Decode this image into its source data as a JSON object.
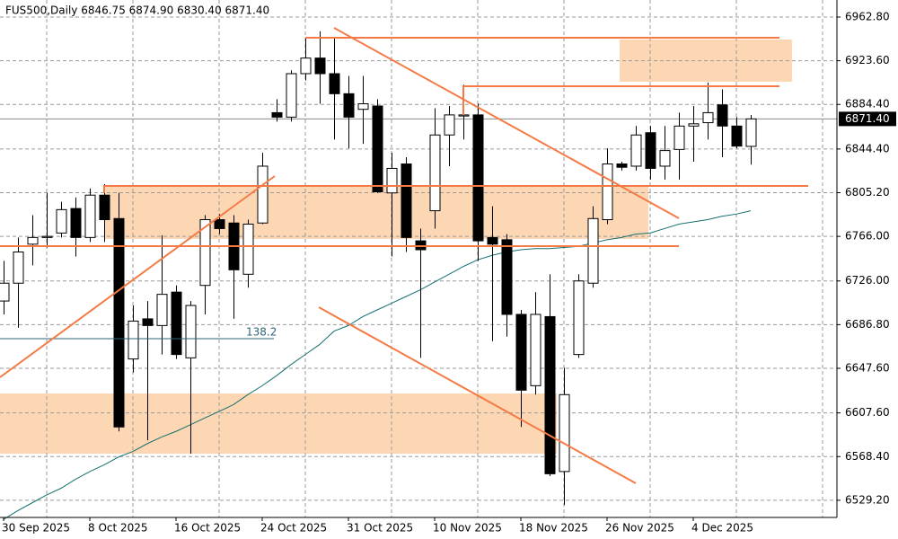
{
  "chart_data": {
    "type": "candlestick",
    "title": "FUS500,Daily  6846.75 6874.90 6830.40 6871.40",
    "categories": [
      "30 Sep 2025",
      null,
      null,
      null,
      null,
      null,
      "8 Oct 2025",
      null,
      null,
      null,
      null,
      null,
      "16 Oct 2025",
      null,
      null,
      null,
      null,
      null,
      "24 Oct 2025",
      null,
      null,
      null,
      null,
      null,
      "31 Oct 2025",
      null,
      null,
      null,
      null,
      null,
      "10 Nov 2025",
      null,
      null,
      null,
      null,
      null,
      "18 Nov 2025",
      null,
      null,
      null,
      null,
      null,
      "26 Nov 2025",
      null,
      null,
      null,
      null,
      null,
      "4 Dec 2025",
      null,
      null,
      null,
      null
    ],
    "open": [
      6708,
      6724,
      6759,
      6765,
      6769,
      6791,
      6765,
      6803,
      6782,
      6656,
      6692,
      6686,
      6716,
      6657,
      6722,
      6781,
      6778,
      6732,
      6778,
      6877,
      6873,
      6912,
      6926,
      6912,
      6894,
      6880,
      6883,
      6805,
      6831,
      6762,
      6789,
      6857,
      6874,
      6875,
      6765,
      6763,
      6696,
      6632,
      6694,
      6555,
      6660,
      6724,
      6781,
      6831,
      6829,
      6859,
      6829,
      6844,
      6865,
      6868,
      6884,
      6865,
      6846.75
    ],
    "high": [
      6744,
      6765,
      6785,
      6805,
      6797,
      6801,
      6809,
      6813,
      6805,
      6704,
      6708,
      6767,
      6722,
      6708,
      6785,
      6786,
      6785,
      6781,
      6841,
      6889,
      6915,
      6944,
      6950,
      6944,
      6910,
      6910,
      6889,
      6841,
      6837,
      6773,
      6881,
      6883,
      6902,
      6885,
      6793,
      6768,
      6700,
      6716,
      6732,
      6648,
      6732,
      6793,
      6845,
      6833,
      6865,
      6865,
      6865,
      6877,
      6883,
      6904,
      6898,
      6873,
      6874.9
    ],
    "low": [
      6696,
      6684,
      6740,
      6756,
      6765,
      6748,
      6761,
      6761,
      6591,
      6644,
      6583,
      6660,
      6656,
      6571,
      6696,
      6768,
      6692,
      6720,
      6777,
      6869,
      6869,
      6906,
      6885,
      6853,
      6845,
      6849,
      6805,
      6748,
      6752,
      6657,
      6773,
      6829,
      6853,
      6744,
      6672,
      6676,
      6595,
      6624,
      6551,
      6525,
      6657,
      6720,
      6777,
      6825,
      6825,
      6817,
      6817,
      6817,
      6833,
      6853,
      6837,
      6845,
      6830.4
    ],
    "close": [
      6724,
      6752,
      6765,
      6766,
      6790,
      6765,
      6803,
      6781,
      6595,
      6690,
      6686,
      6714,
      6660,
      6704,
      6781,
      6773,
      6736,
      6777,
      6829,
      6873,
      6912,
      6926,
      6912,
      6894,
      6873,
      6885,
      6806,
      6827,
      6765,
      6754,
      6857,
      6875,
      6875,
      6762,
      6759,
      6696,
      6628,
      6696,
      6553,
      6624,
      6726,
      6782,
      6831,
      6828,
      6857,
      6827,
      6843,
      6865,
      6867,
      6877,
      6865,
      6847,
      6871.4
    ],
    "up_color": "#ffffff",
    "down_color": "#000000",
    "ylim": [
      6513.8,
      6978.1
    ],
    "yticks": [
      {
        "value": 6962.8,
        "label": "6962.80"
      },
      {
        "value": 6923.6,
        "label": "6923.60"
      },
      {
        "value": 6884.4,
        "label": "6884.40"
      },
      {
        "value": 6844.4,
        "label": "6844.40"
      },
      {
        "value": 6805.2,
        "label": "6805.20"
      },
      {
        "value": 6766,
        "label": "6766.00"
      },
      {
        "value": 6726,
        "label": "6726.00"
      },
      {
        "value": 6686.8,
        "label": "6686.80"
      },
      {
        "value": 6647.6,
        "label": "6647.60"
      },
      {
        "value": 6607.6,
        "label": "6607.60"
      },
      {
        "value": 6568.4,
        "label": "6568.40"
      },
      {
        "value": 6529.2,
        "label": "6529.20"
      }
    ],
    "last_price": {
      "value": 6871.4,
      "label": "6871.40"
    },
    "moving_average": {
      "color": "#13706e",
      "values": [
        6512,
        6520,
        6527,
        6534,
        6540,
        6548,
        6555,
        6561,
        6568,
        6573,
        6580,
        6586,
        6591,
        6597,
        6603,
        6609,
        6615,
        6624,
        6632,
        6641,
        6651,
        6660,
        6669,
        6681,
        6686,
        6694,
        6700,
        6706,
        6712,
        6718,
        6725,
        6732,
        6739,
        6745,
        6749,
        6752,
        6754,
        6755,
        6755,
        6756,
        6757,
        6760,
        6763,
        6765,
        6768,
        6769,
        6773,
        6777,
        6779,
        6781,
        6784,
        6786,
        6789
      ]
    },
    "annotation": "138.2"
  }
}
